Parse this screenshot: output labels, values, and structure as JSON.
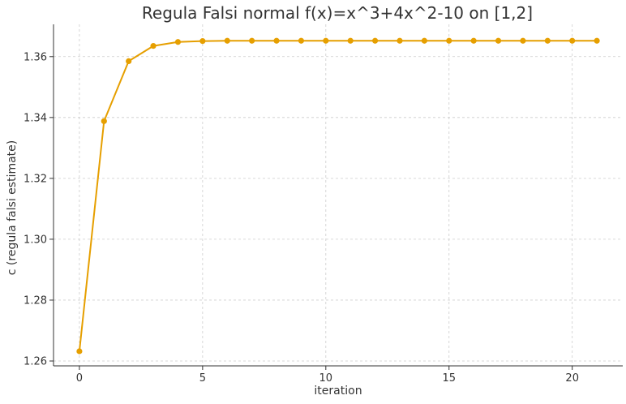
{
  "chart_data": {
    "type": "line",
    "title": "Regula Falsi normal f(x)=x^3+4x^2-10 on [1,2]",
    "xlabel": "iteration",
    "ylabel": "c (regula falsi estimate)",
    "xlim": [
      -1.05,
      22.05
    ],
    "ylim": [
      1.2584,
      1.3706
    ],
    "xticks": [
      0,
      5,
      10,
      15,
      20
    ],
    "xtick_labels": [
      "0",
      "5",
      "10",
      "15",
      "20"
    ],
    "yticks": [
      1.26,
      1.28,
      1.3,
      1.32,
      1.34,
      1.36
    ],
    "ytick_labels": [
      "1.26",
      "1.28",
      "1.30",
      "1.32",
      "1.34",
      "1.36"
    ],
    "grid": true,
    "series": [
      {
        "color": "#E69F00",
        "marker": "circle",
        "x": [
          0,
          1,
          2,
          3,
          4,
          5,
          6,
          7,
          8,
          9,
          10,
          11,
          12,
          13,
          14,
          15,
          16,
          17,
          18,
          19,
          20,
          21
        ],
        "y": [
          1.2632,
          1.3388,
          1.3585,
          1.3635,
          1.3648,
          1.3651,
          1.3652,
          1.3652,
          1.3652,
          1.3652,
          1.3652,
          1.3652,
          1.3652,
          1.3652,
          1.3652,
          1.3652,
          1.3652,
          1.3652,
          1.3652,
          1.3652,
          1.3652,
          1.3652
        ]
      }
    ]
  }
}
